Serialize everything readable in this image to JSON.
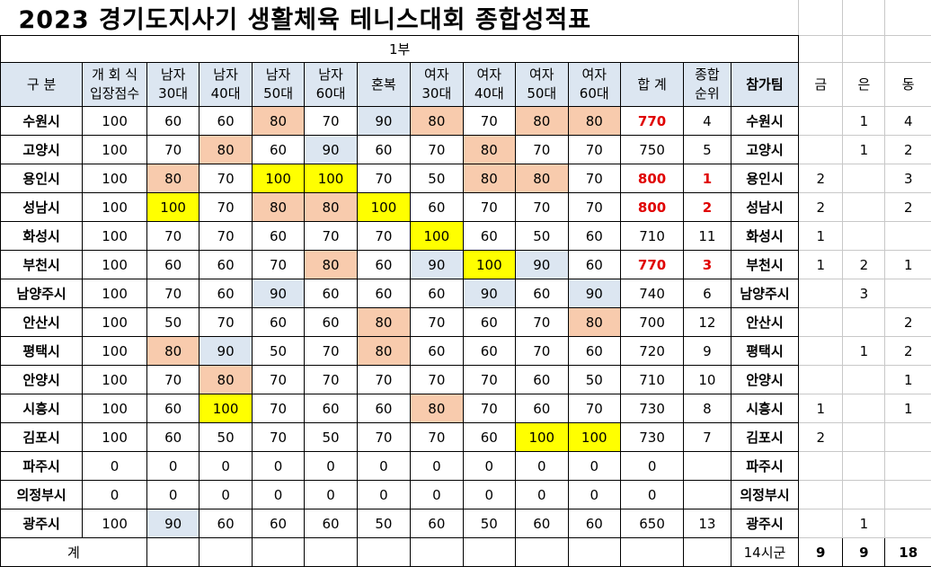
{
  "title": "2023 경기도지사기 생활체육 테니스대회 종합성적표",
  "division": "1부",
  "headers": {
    "category": "구  분",
    "ceremony": [
      "개 회 식",
      "입장점수"
    ],
    "events": [
      [
        "남자",
        "30대"
      ],
      [
        "남자",
        "40대"
      ],
      [
        "남자",
        "50대"
      ],
      [
        "남자",
        "60대"
      ],
      [
        "혼복"
      ],
      [
        "여자",
        "30대"
      ],
      [
        "여자",
        "40대"
      ],
      [
        "여자",
        "50대"
      ],
      [
        "여자",
        "60대"
      ]
    ],
    "total": "합 계",
    "rank": [
      "종합",
      "순위"
    ],
    "team": "참가팀",
    "gold": "금",
    "silver": "은",
    "bronze": "동"
  },
  "colors": {
    "yellow": "#ffff00",
    "peach": "#f8cbad",
    "blue": "#dce6f1",
    "highlight_text": "#e00000"
  },
  "rows": [
    {
      "name": "수원시",
      "entry": "100",
      "scores": [
        "60",
        "60",
        "80",
        "70",
        "90",
        "80",
        "70",
        "80",
        "80"
      ],
      "hl": [
        "",
        "",
        "p",
        "",
        "b",
        "p",
        "",
        "p",
        "p"
      ],
      "total": "770",
      "total_red": true,
      "rank": "4",
      "rank_red": false,
      "team": "수원시",
      "gold": "",
      "silver": "1",
      "bronze": "4"
    },
    {
      "name": "고양시",
      "entry": "100",
      "scores": [
        "70",
        "80",
        "60",
        "90",
        "60",
        "70",
        "80",
        "70",
        "70"
      ],
      "hl": [
        "",
        "p",
        "",
        "b",
        "",
        "",
        "p",
        "",
        ""
      ],
      "total": "750",
      "total_red": false,
      "rank": "5",
      "rank_red": false,
      "team": "고양시",
      "gold": "",
      "silver": "1",
      "bronze": "2"
    },
    {
      "name": "용인시",
      "entry": "100",
      "scores": [
        "80",
        "70",
        "100",
        "100",
        "70",
        "50",
        "80",
        "80",
        "70"
      ],
      "hl": [
        "p",
        "",
        "y",
        "y",
        "",
        "",
        "p",
        "p",
        ""
      ],
      "total": "800",
      "total_red": true,
      "rank": "1",
      "rank_red": true,
      "team": "용인시",
      "gold": "2",
      "silver": "",
      "bronze": "3"
    },
    {
      "name": "성남시",
      "entry": "100",
      "scores": [
        "100",
        "70",
        "80",
        "80",
        "100",
        "60",
        "70",
        "70",
        "70"
      ],
      "hl": [
        "y",
        "",
        "p",
        "p",
        "y",
        "",
        "",
        "",
        ""
      ],
      "total": "800",
      "total_red": true,
      "rank": "2",
      "rank_red": true,
      "team": "성남시",
      "gold": "2",
      "silver": "",
      "bronze": "2"
    },
    {
      "name": "화성시",
      "entry": "100",
      "scores": [
        "70",
        "70",
        "60",
        "70",
        "70",
        "100",
        "60",
        "50",
        "60"
      ],
      "hl": [
        "",
        "",
        "",
        "",
        "",
        "y",
        "",
        "",
        ""
      ],
      "total": "710",
      "total_red": false,
      "rank": "11",
      "rank_red": false,
      "team": "화성시",
      "gold": "1",
      "silver": "",
      "bronze": ""
    },
    {
      "name": "부천시",
      "entry": "100",
      "scores": [
        "60",
        "60",
        "70",
        "80",
        "60",
        "90",
        "100",
        "90",
        "60"
      ],
      "hl": [
        "",
        "",
        "",
        "p",
        "",
        "b",
        "y",
        "b",
        ""
      ],
      "total": "770",
      "total_red": true,
      "rank": "3",
      "rank_red": true,
      "team": "부천시",
      "gold": "1",
      "silver": "2",
      "bronze": "1"
    },
    {
      "name": "남양주시",
      "entry": "100",
      "scores": [
        "70",
        "60",
        "90",
        "60",
        "60",
        "60",
        "90",
        "60",
        "90"
      ],
      "hl": [
        "",
        "",
        "b",
        "",
        "",
        "",
        "b",
        "",
        "b"
      ],
      "total": "740",
      "total_red": false,
      "rank": "6",
      "rank_red": false,
      "team": "남양주시",
      "gold": "",
      "silver": "3",
      "bronze": ""
    },
    {
      "name": "안산시",
      "entry": "100",
      "scores": [
        "50",
        "70",
        "60",
        "60",
        "80",
        "70",
        "60",
        "70",
        "80"
      ],
      "hl": [
        "",
        "",
        "",
        "",
        "p",
        "",
        "",
        "",
        "p"
      ],
      "total": "700",
      "total_red": false,
      "rank": "12",
      "rank_red": false,
      "team": "안산시",
      "gold": "",
      "silver": "",
      "bronze": "2"
    },
    {
      "name": "평택시",
      "entry": "100",
      "scores": [
        "80",
        "90",
        "50",
        "70",
        "80",
        "60",
        "60",
        "70",
        "60"
      ],
      "hl": [
        "p",
        "b",
        "",
        "",
        "p",
        "",
        "",
        "",
        ""
      ],
      "total": "720",
      "total_red": false,
      "rank": "9",
      "rank_red": false,
      "team": "평택시",
      "gold": "",
      "silver": "1",
      "bronze": "2"
    },
    {
      "name": "안양시",
      "entry": "100",
      "scores": [
        "70",
        "80",
        "70",
        "70",
        "70",
        "70",
        "70",
        "60",
        "50"
      ],
      "hl": [
        "",
        "p",
        "",
        "",
        "",
        "",
        "",
        "",
        ""
      ],
      "total": "710",
      "total_red": false,
      "rank": "10",
      "rank_red": false,
      "team": "안양시",
      "gold": "",
      "silver": "",
      "bronze": "1"
    },
    {
      "name": "시흥시",
      "entry": "100",
      "scores": [
        "60",
        "100",
        "70",
        "60",
        "60",
        "80",
        "70",
        "60",
        "70"
      ],
      "hl": [
        "",
        "y",
        "",
        "",
        "",
        "p",
        "",
        "",
        ""
      ],
      "total": "730",
      "total_red": false,
      "rank": "8",
      "rank_red": false,
      "team": "시흥시",
      "gold": "1",
      "silver": "",
      "bronze": "1"
    },
    {
      "name": "김포시",
      "entry": "100",
      "scores": [
        "60",
        "50",
        "70",
        "50",
        "70",
        "70",
        "60",
        "100",
        "100"
      ],
      "hl": [
        "",
        "",
        "",
        "",
        "",
        "",
        "",
        "y",
        "y"
      ],
      "total": "730",
      "total_red": false,
      "rank": "7",
      "rank_red": false,
      "team": "김포시",
      "gold": "2",
      "silver": "",
      "bronze": ""
    },
    {
      "name": "파주시",
      "entry": "0",
      "scores": [
        "0",
        "0",
        "0",
        "0",
        "0",
        "0",
        "0",
        "0",
        "0"
      ],
      "hl": [
        "",
        "",
        "",
        "",
        "",
        "",
        "",
        "",
        ""
      ],
      "total": "0",
      "total_red": false,
      "rank": "",
      "rank_red": false,
      "team": "파주시",
      "gold": "",
      "silver": "",
      "bronze": ""
    },
    {
      "name": "의정부시",
      "entry": "0",
      "scores": [
        "0",
        "0",
        "0",
        "0",
        "0",
        "0",
        "0",
        "0",
        "0"
      ],
      "hl": [
        "",
        "",
        "",
        "",
        "",
        "",
        "",
        "",
        ""
      ],
      "total": "0",
      "total_red": false,
      "rank": "",
      "rank_red": false,
      "team": "의정부시",
      "gold": "",
      "silver": "",
      "bronze": ""
    },
    {
      "name": "광주시",
      "entry": "100",
      "scores": [
        "90",
        "60",
        "60",
        "60",
        "50",
        "60",
        "50",
        "60",
        "60"
      ],
      "hl": [
        "b",
        "",
        "",
        "",
        "",
        "",
        "",
        "",
        ""
      ],
      "total": "650",
      "total_red": false,
      "rank": "13",
      "rank_red": false,
      "team": "광주시",
      "gold": "",
      "silver": "1",
      "bronze": ""
    }
  ],
  "footer": {
    "label": "계",
    "teams_count": "14시군",
    "gold": "9",
    "silver": "9",
    "bronze": "18"
  }
}
